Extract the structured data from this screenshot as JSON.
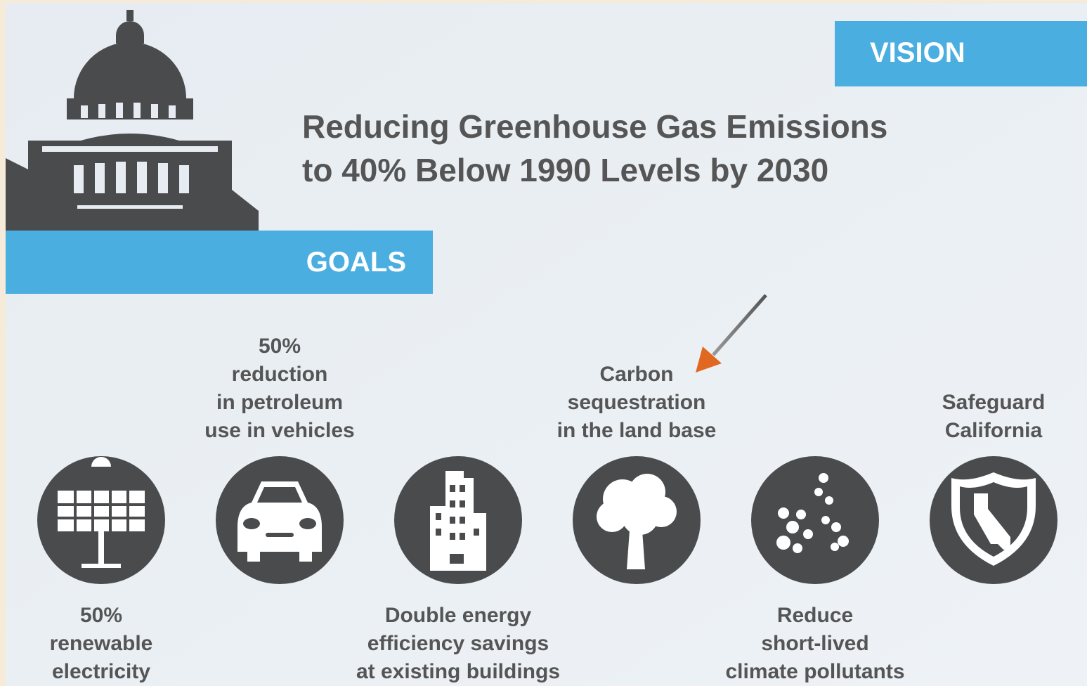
{
  "vision_label": "VISION",
  "title_lines": [
    "Reducing Greenhouse Gas Emissions",
    "to 40% Below 1990 Levels by 2030"
  ],
  "goals_label": "GOALS",
  "goals": [
    {
      "lines": [
        "50%",
        "renewable",
        "electricity"
      ]
    },
    {
      "lines": [
        "50%",
        "reduction",
        "in petroleum",
        "use in vehicles"
      ]
    },
    {
      "lines": [
        "Double energy",
        "efficiency savings",
        "at existing buildings"
      ]
    },
    {
      "lines": [
        "Carbon",
        "sequestration",
        "in the land base"
      ]
    },
    {
      "lines": [
        "Reduce",
        "short-lived",
        "climate pollutants"
      ]
    },
    {
      "lines": [
        "Safeguard",
        "California"
      ]
    }
  ]
}
